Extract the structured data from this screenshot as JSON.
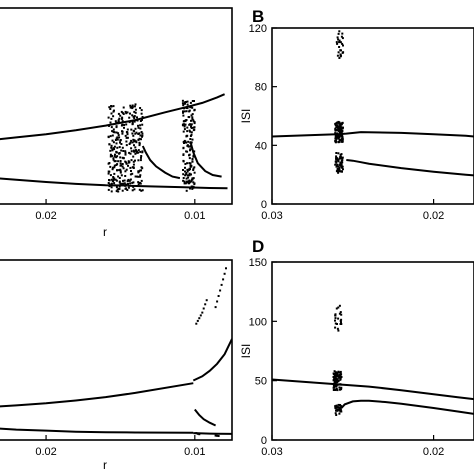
{
  "chart_data": [
    {
      "id": "A",
      "type": "scatter",
      "panel_label": "",
      "xlabel": "r",
      "ylabel": "",
      "xlim": [
        0.0235,
        0.0075
      ],
      "ylim": [
        0,
        125
      ],
      "xticks": [
        {
          "v": 0.02,
          "label": "0.02"
        },
        {
          "v": 0.01,
          "label": "0.01"
        }
      ],
      "yticks": [],
      "series": [
        {
          "kind": "line",
          "points": [
            [
              0.0235,
              41
            ],
            [
              0.022,
              42.5
            ],
            [
              0.02,
              44.5
            ],
            [
              0.018,
              47
            ],
            [
              0.016,
              50
            ],
            [
              0.014,
              53.5
            ],
            [
              0.012,
              58.5
            ],
            [
              0.0105,
              62
            ],
            [
              0.0095,
              64.5
            ],
            [
              0.0085,
              68
            ],
            [
              0.008,
              70
            ]
          ]
        },
        {
          "kind": "line",
          "points": [
            [
              0.0235,
              16.5
            ],
            [
              0.022,
              15.5
            ],
            [
              0.02,
              14
            ],
            [
              0.018,
              12.8
            ],
            [
              0.016,
              12
            ],
            [
              0.0145,
              11.8
            ]
          ]
        },
        {
          "kind": "line",
          "points": [
            [
              0.0135,
              37
            ],
            [
              0.0133,
              33
            ],
            [
              0.013,
              28
            ],
            [
              0.0126,
              24
            ],
            [
              0.012,
              20
            ],
            [
              0.0115,
              17.5
            ],
            [
              0.011,
              16.5
            ]
          ]
        },
        {
          "kind": "line",
          "points": [
            [
              0.0103,
              40
            ],
            [
              0.0101,
              33
            ],
            [
              0.0098,
              26
            ],
            [
              0.0093,
              21
            ],
            [
              0.0088,
              18.5
            ],
            [
              0.0082,
              17.5
            ]
          ]
        },
        {
          "kind": "line",
          "points": [
            [
              0.0145,
              11.7
            ],
            [
              0.013,
              11.2
            ],
            [
              0.011,
              10.8
            ],
            [
              0.009,
              10.2
            ],
            [
              0.0078,
              10
            ]
          ]
        },
        {
          "kind": "scatter",
          "x_range": [
            0.0158,
            0.0135
          ],
          "y_range": [
            8,
            64
          ],
          "count": 340,
          "seed": 7
        },
        {
          "kind": "scatter",
          "x_range": [
            0.0108,
            0.01
          ],
          "y_range": [
            8,
            66
          ],
          "count": 170,
          "seed": 13
        }
      ]
    },
    {
      "id": "B",
      "type": "scatter",
      "panel_label": "B",
      "xlabel": "",
      "ylabel": "ISI",
      "xlim": [
        0.03,
        0.0175
      ],
      "ylim": [
        0,
        120
      ],
      "xticks": [
        {
          "v": 0.03,
          "label": "0.03"
        },
        {
          "v": 0.02,
          "label": "0.02"
        }
      ],
      "yticks": [
        {
          "v": 0,
          "label": "0"
        },
        {
          "v": 40,
          "label": "40"
        },
        {
          "v": 80,
          "label": "80"
        },
        {
          "v": 120,
          "label": "120"
        }
      ],
      "series": [
        {
          "kind": "line",
          "points": [
            [
              0.03,
              46
            ],
            [
              0.028,
              46.8
            ],
            [
              0.026,
              47.5
            ],
            [
              0.0254,
              48
            ],
            [
              0.0245,
              49
            ],
            [
              0.022,
              48.5
            ],
            [
              0.02,
              47.5
            ],
            [
              0.018,
              46.5
            ],
            [
              0.0175,
              46
            ]
          ]
        },
        {
          "kind": "line",
          "points": [
            [
              0.0254,
              30
            ],
            [
              0.025,
              29.5
            ],
            [
              0.0245,
              28.5
            ],
            [
              0.024,
              27.5
            ],
            [
              0.022,
              24.5
            ],
            [
              0.02,
              22
            ],
            [
              0.018,
              20
            ],
            [
              0.0175,
              19.5
            ]
          ]
        },
        {
          "kind": "scatter",
          "x_range": [
            0.0261,
            0.0256
          ],
          "y_range": [
            42,
            56
          ],
          "count": 110,
          "seed": 3
        },
        {
          "kind": "scatter",
          "x_range": [
            0.0261,
            0.0256
          ],
          "y_range": [
            21,
            35
          ],
          "count": 60,
          "seed": 5
        },
        {
          "kind": "scatter",
          "x_range": [
            0.026,
            0.0256
          ],
          "y_range": [
            98,
            118
          ],
          "count": 26,
          "seed": 9
        }
      ]
    },
    {
      "id": "C",
      "type": "scatter",
      "panel_label": "",
      "xlabel": "r",
      "ylabel": "",
      "xlim": [
        0.0235,
        0.0075
      ],
      "ylim": [
        0,
        130
      ],
      "xticks": [
        {
          "v": 0.02,
          "label": "0.02"
        },
        {
          "v": 0.01,
          "label": "0.01"
        }
      ],
      "yticks": [],
      "series": [
        {
          "kind": "line",
          "points": [
            [
              0.0235,
              24
            ],
            [
              0.022,
              25
            ],
            [
              0.02,
              26.5
            ],
            [
              0.018,
              28.5
            ],
            [
              0.016,
              31
            ],
            [
              0.014,
              34
            ],
            [
              0.0101,
              41
            ]
          ]
        },
        {
          "kind": "line",
          "points": [
            [
              0.0101,
              43
            ],
            [
              0.0095,
              46
            ],
            [
              0.009,
              50
            ],
            [
              0.0085,
              55
            ],
            [
              0.008,
              62
            ],
            [
              0.0075,
              73
            ]
          ]
        },
        {
          "kind": "line",
          "points": [
            [
              0.0235,
              8.5
            ],
            [
              0.022,
              7.5
            ],
            [
              0.02,
              6.8
            ],
            [
              0.018,
              6
            ],
            [
              0.016,
              5.6
            ],
            [
              0.014,
              5.4
            ],
            [
              0.0101,
              5.2
            ]
          ]
        },
        {
          "kind": "line",
          "points": [
            [
              0.0101,
              5
            ],
            [
              0.0095,
              4.8
            ],
            [
              0.009,
              4.6
            ],
            [
              0.0085,
              4.5
            ],
            [
              0.0075,
              4.4
            ]
          ]
        },
        {
          "kind": "line",
          "points": [
            [
              0.01,
              22
            ],
            [
              0.0097,
              18
            ],
            [
              0.0094,
              15
            ],
            [
              0.009,
              12.5
            ],
            [
              0.0086,
              10.5
            ]
          ]
        },
        {
          "kind": "scatter",
          "x_range": [
            0.0099,
            0.0075
          ],
          "y_range": [
            60,
            126
          ],
          "count": 0,
          "seed": 1
        }
      ]
    },
    {
      "id": "D",
      "type": "scatter",
      "panel_label": "D",
      "xlabel": "",
      "ylabel": "ISI",
      "xlim": [
        0.03,
        0.0175
      ],
      "ylim": [
        0,
        150
      ],
      "xticks": [
        {
          "v": 0.03,
          "label": "0.03"
        },
        {
          "v": 0.02,
          "label": "0.02"
        }
      ],
      "yticks": [
        {
          "v": 0,
          "label": "0"
        },
        {
          "v": 50,
          "label": "50"
        },
        {
          "v": 100,
          "label": "100"
        },
        {
          "v": 150,
          "label": "150"
        }
      ],
      "series": [
        {
          "kind": "line",
          "points": [
            [
              0.03,
              51
            ],
            [
              0.028,
              49
            ],
            [
              0.026,
              47
            ],
            [
              0.024,
              45
            ],
            [
              0.022,
              42
            ],
            [
              0.02,
              38.5
            ],
            [
              0.0185,
              36
            ],
            [
              0.0175,
              34.5
            ]
          ]
        },
        {
          "kind": "line",
          "points": [
            [
              0.0257,
              27
            ],
            [
              0.0255,
              30
            ],
            [
              0.025,
              32.5
            ],
            [
              0.0245,
              33
            ],
            [
              0.024,
              33
            ],
            [
              0.023,
              32
            ],
            [
              0.022,
              30.5
            ],
            [
              0.02,
              27
            ],
            [
              0.0185,
              24
            ],
            [
              0.0175,
              22
            ]
          ]
        },
        {
          "kind": "scatter",
          "x_range": [
            0.0262,
            0.0257
          ],
          "y_range": [
            42,
            58
          ],
          "count": 90,
          "seed": 21
        },
        {
          "kind": "scatter",
          "x_range": [
            0.0261,
            0.0257
          ],
          "y_range": [
            21,
            30
          ],
          "count": 28,
          "seed": 23
        },
        {
          "kind": "scatter",
          "x_range": [
            0.0261,
            0.0257
          ],
          "y_range": [
            92,
            114
          ],
          "count": 22,
          "seed": 29
        }
      ]
    }
  ]
}
